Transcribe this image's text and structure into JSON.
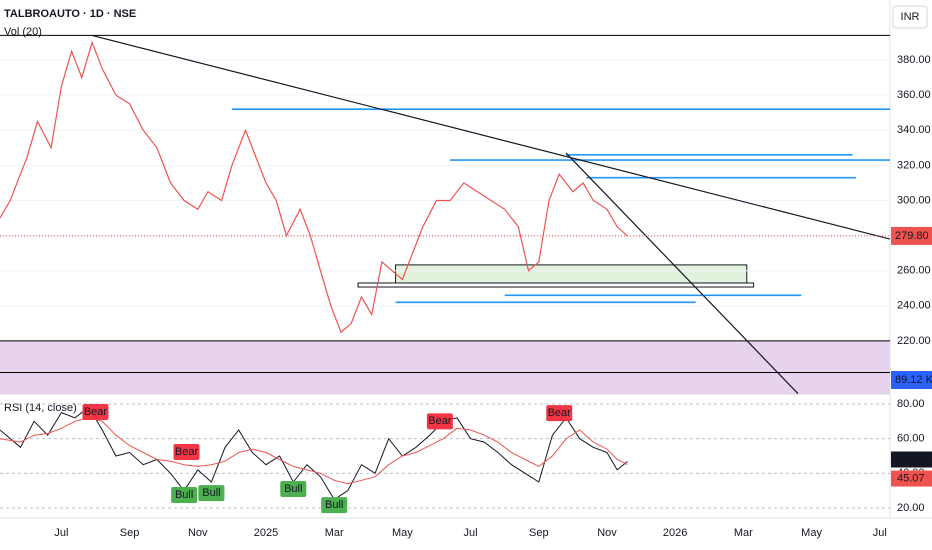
{
  "chart_data": [
    {
      "type": "line",
      "title": "TALBROAUTO · 1D · NSE",
      "volume_title": "Vol (20)",
      "currency": "INR",
      "x": [
        -1.8,
        -1.5,
        -1.0,
        -0.7,
        -0.3,
        0,
        0.3,
        0.6,
        0.9,
        1.2,
        1.6,
        2.0,
        2.4,
        2.8,
        3.2,
        3.6,
        4.0,
        4.3,
        4.7,
        5.0,
        5.4,
        5.7,
        6.0,
        6.3,
        6.6,
        7.0,
        7.3,
        7.6,
        7.9,
        8.2,
        8.5,
        8.8,
        9.1,
        9.4,
        9.7,
        10.0,
        10.3,
        10.6,
        11.0,
        11.4,
        11.8,
        12.2,
        12.6,
        13.0,
        13.4,
        13.7,
        14.0,
        14.3,
        14.6,
        15.0,
        15.3,
        15.6,
        16.0,
        16.3,
        16.6
      ],
      "values": [
        290,
        300,
        325,
        345,
        330,
        365,
        385,
        370,
        390,
        375,
        360,
        355,
        340,
        330,
        310,
        300,
        295,
        305,
        300,
        320,
        340,
        325,
        310,
        300,
        280,
        295,
        280,
        260,
        240,
        225,
        230,
        245,
        235,
        265,
        260,
        255,
        270,
        285,
        300,
        300,
        310,
        305,
        300,
        295,
        285,
        260,
        265,
        300,
        315,
        305,
        310,
        300,
        295,
        285,
        279.8
      ],
      "color": "#ef5350",
      "xlim": [
        -1.8,
        24.3
      ],
      "ylim": [
        190,
        400
      ],
      "xticks": [
        {
          "value": 0,
          "label": "Jul"
        },
        {
          "value": 2,
          "label": "Sep"
        },
        {
          "value": 4,
          "label": "Nov"
        },
        {
          "value": 6,
          "label": "2025"
        },
        {
          "value": 8,
          "label": "Mar"
        },
        {
          "value": 10,
          "label": "May"
        },
        {
          "value": 12,
          "label": "Jul"
        },
        {
          "value": 14,
          "label": "Sep"
        },
        {
          "value": 16,
          "label": "Nov"
        },
        {
          "value": 18,
          "label": "2026"
        },
        {
          "value": 20,
          "label": "Mar"
        },
        {
          "value": 22,
          "label": "May"
        },
        {
          "value": 24,
          "label": "Jul"
        }
      ],
      "yticks": [
        {
          "value": 220,
          "label": "220.00"
        },
        {
          "value": 240,
          "label": "240.00"
        },
        {
          "value": 260,
          "label": "260.00"
        },
        {
          "value": 280,
          "label": "280.00"
        },
        {
          "value": 300,
          "label": "300.00"
        },
        {
          "value": 320,
          "label": "320.00"
        },
        {
          "value": 340,
          "label": "340.00"
        },
        {
          "value": 360,
          "label": "360.00"
        },
        {
          "value": 380,
          "label": "380.00"
        }
      ],
      "last_value": {
        "value": 279.8,
        "label": "279.80"
      },
      "volume_label": "89.12 K",
      "levels": [
        {
          "value": 394,
          "x": [
            -1.8,
            24.3
          ],
          "color": "#000000"
        },
        {
          "value": 220,
          "x": [
            -1.8,
            24.3
          ],
          "color": "#000000"
        },
        {
          "value": 202,
          "x": [
            -1.8,
            24.3
          ],
          "color": "#000000"
        },
        {
          "value": 352,
          "x": [
            5.0,
            24.3
          ],
          "color": "#2196f3"
        },
        {
          "value": 323,
          "x": [
            11.4,
            24.3
          ],
          "color": "#2196f3"
        },
        {
          "value": 326,
          "x": [
            14.8,
            23.2
          ],
          "color": "#2196f3"
        },
        {
          "value": 313,
          "x": [
            15.4,
            23.3
          ],
          "color": "#2196f3"
        },
        {
          "value": 246,
          "x": [
            13.0,
            21.7
          ],
          "color": "#2196f3"
        },
        {
          "value": 242,
          "x": [
            9.8,
            18.6
          ],
          "color": "#2196f3"
        }
      ],
      "trendlines": [
        {
          "x": [
            0.9,
            24.3
          ],
          "y": [
            394,
            278
          ]
        },
        {
          "x": [
            14.8,
            21.6
          ],
          "y": [
            327,
            190
          ]
        }
      ],
      "zones": [
        {
          "x": [
            9.8,
            20.1
          ],
          "y": [
            253,
            263.3
          ],
          "color": "#e3f2dc"
        },
        {
          "x": [
            8.7,
            20.3
          ],
          "y": [
            250.7,
            253
          ],
          "color": "#ffffff"
        },
        {
          "x": [
            -1.8,
            24.3
          ],
          "y": [
            190,
            220
          ],
          "color": "#e8d3ee"
        }
      ]
    },
    {
      "type": "line",
      "title": "RSI (14, close)",
      "x": [
        -1.8,
        -1.2,
        -0.8,
        -0.4,
        0,
        0.4,
        0.8,
        1.2,
        1.6,
        2.0,
        2.4,
        2.8,
        3.2,
        3.6,
        4.0,
        4.4,
        4.8,
        5.2,
        5.6,
        6.0,
        6.4,
        6.8,
        7.2,
        7.6,
        8.0,
        8.4,
        8.8,
        9.2,
        9.6,
        10.0,
        10.4,
        10.8,
        11.2,
        11.6,
        12.0,
        12.4,
        12.8,
        13.2,
        13.6,
        14.0,
        14.4,
        14.8,
        15.2,
        15.6,
        16.0,
        16.3,
        16.6
      ],
      "series": [
        {
          "color": "#131722",
          "values": [
            65,
            55,
            70,
            62,
            75,
            72,
            78,
            65,
            50,
            52,
            45,
            48,
            40,
            30,
            42,
            35,
            55,
            65,
            52,
            45,
            50,
            35,
            45,
            38,
            25,
            30,
            45,
            40,
            60,
            50,
            55,
            62,
            70,
            72,
            60,
            58,
            52,
            45,
            40,
            35,
            62,
            72,
            60,
            55,
            52,
            42,
            46.83
          ]
        },
        {
          "color": "#ef5350",
          "values": [
            60,
            58,
            62,
            63,
            66,
            70,
            72,
            70,
            62,
            56,
            52,
            48,
            47,
            45,
            44,
            45,
            47,
            52,
            54,
            52,
            48,
            44,
            42,
            40,
            36,
            34,
            36,
            38,
            45,
            50,
            52,
            56,
            60,
            66,
            65,
            62,
            58,
            52,
            48,
            44,
            50,
            60,
            65,
            58,
            54,
            48,
            45.07
          ]
        }
      ],
      "xlim": [
        -1.8,
        24.3
      ],
      "ylim": [
        15,
        85
      ],
      "yticks": [
        {
          "value": 20,
          "label": "20.00"
        },
        {
          "value": 40,
          "label": "40.00"
        },
        {
          "value": 60,
          "label": "60.00"
        },
        {
          "value": 80,
          "label": "80.00"
        }
      ],
      "signals": [
        {
          "label": "Bear",
          "x": 1.0,
          "value": 75.4
        },
        {
          "label": "Bear",
          "x": 3.67,
          "value": 52.3
        },
        {
          "label": "Bear",
          "x": 11.1,
          "value": 70
        },
        {
          "label": "Bear",
          "x": 14.6,
          "value": 74.7
        },
        {
          "label": "Bull",
          "x": 3.6,
          "value": 27.5
        },
        {
          "label": "Bull",
          "x": 4.4,
          "value": 28.6
        },
        {
          "label": "Bull",
          "x": 6.8,
          "value": 31
        },
        {
          "label": "Bull",
          "x": 8.0,
          "value": 21.7
        }
      ]
    }
  ]
}
